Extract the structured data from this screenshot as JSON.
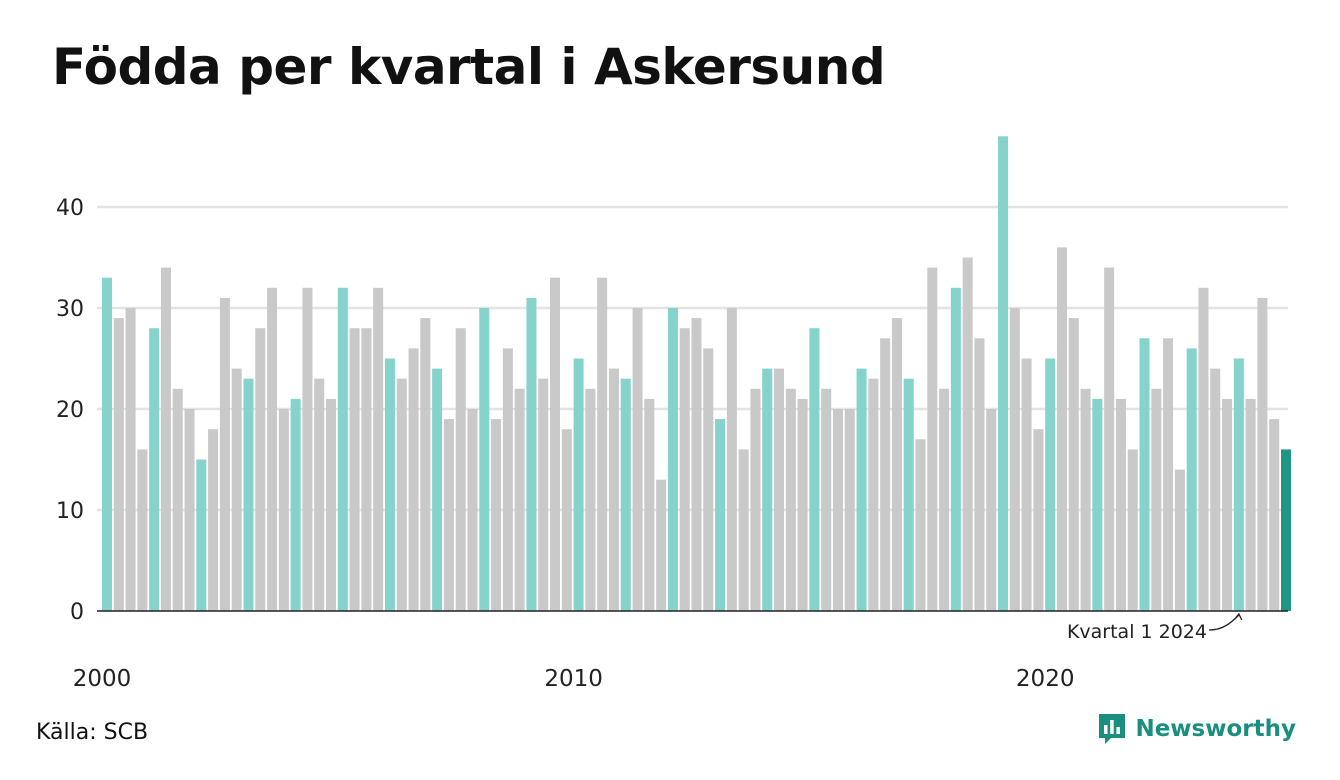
{
  "title": "Födda per kvartal i Askersund",
  "source": "Källa: SCB",
  "brand": "Newsworthy",
  "colors": {
    "highlight": "#85d3ca",
    "other": "#c9c9c9",
    "latest": "#1e9585",
    "grid": "#e3e3e3",
    "axis": "#222222",
    "brand": "#1a8f80"
  },
  "chart_data": {
    "type": "bar",
    "title": "Födda per kvartal i Askersund",
    "x_start_year": 2000,
    "periods_per_year": 4,
    "highlighted_quarter": 1,
    "values": [
      33,
      29,
      30,
      16,
      28,
      34,
      22,
      20,
      15,
      18,
      31,
      24,
      23,
      28,
      32,
      20,
      21,
      32,
      23,
      21,
      32,
      28,
      28,
      32,
      25,
      23,
      26,
      29,
      24,
      19,
      28,
      20,
      30,
      19,
      26,
      22,
      31,
      23,
      33,
      18,
      25,
      22,
      33,
      24,
      23,
      30,
      21,
      13,
      30,
      28,
      29,
      26,
      19,
      30,
      16,
      22,
      24,
      24,
      22,
      21,
      28,
      22,
      20,
      20,
      24,
      23,
      27,
      29,
      23,
      17,
      34,
      22,
      32,
      35,
      27,
      20,
      47,
      30,
      25,
      18,
      25,
      36,
      29,
      22,
      21,
      34,
      21,
      16,
      27,
      22,
      27,
      14,
      26,
      32,
      24,
      21,
      25,
      21,
      31,
      19,
      16
    ],
    "ylim": [
      0,
      48
    ],
    "y_ticks": [
      0,
      10,
      20,
      30,
      40
    ],
    "x_ticks": [
      {
        "year": 2000,
        "label": "2000"
      },
      {
        "year": 2010,
        "label": "2010"
      },
      {
        "year": 2020,
        "label": "2020"
      }
    ],
    "annotation": {
      "label": "Kvartal 1 2024"
    },
    "grid": true
  }
}
